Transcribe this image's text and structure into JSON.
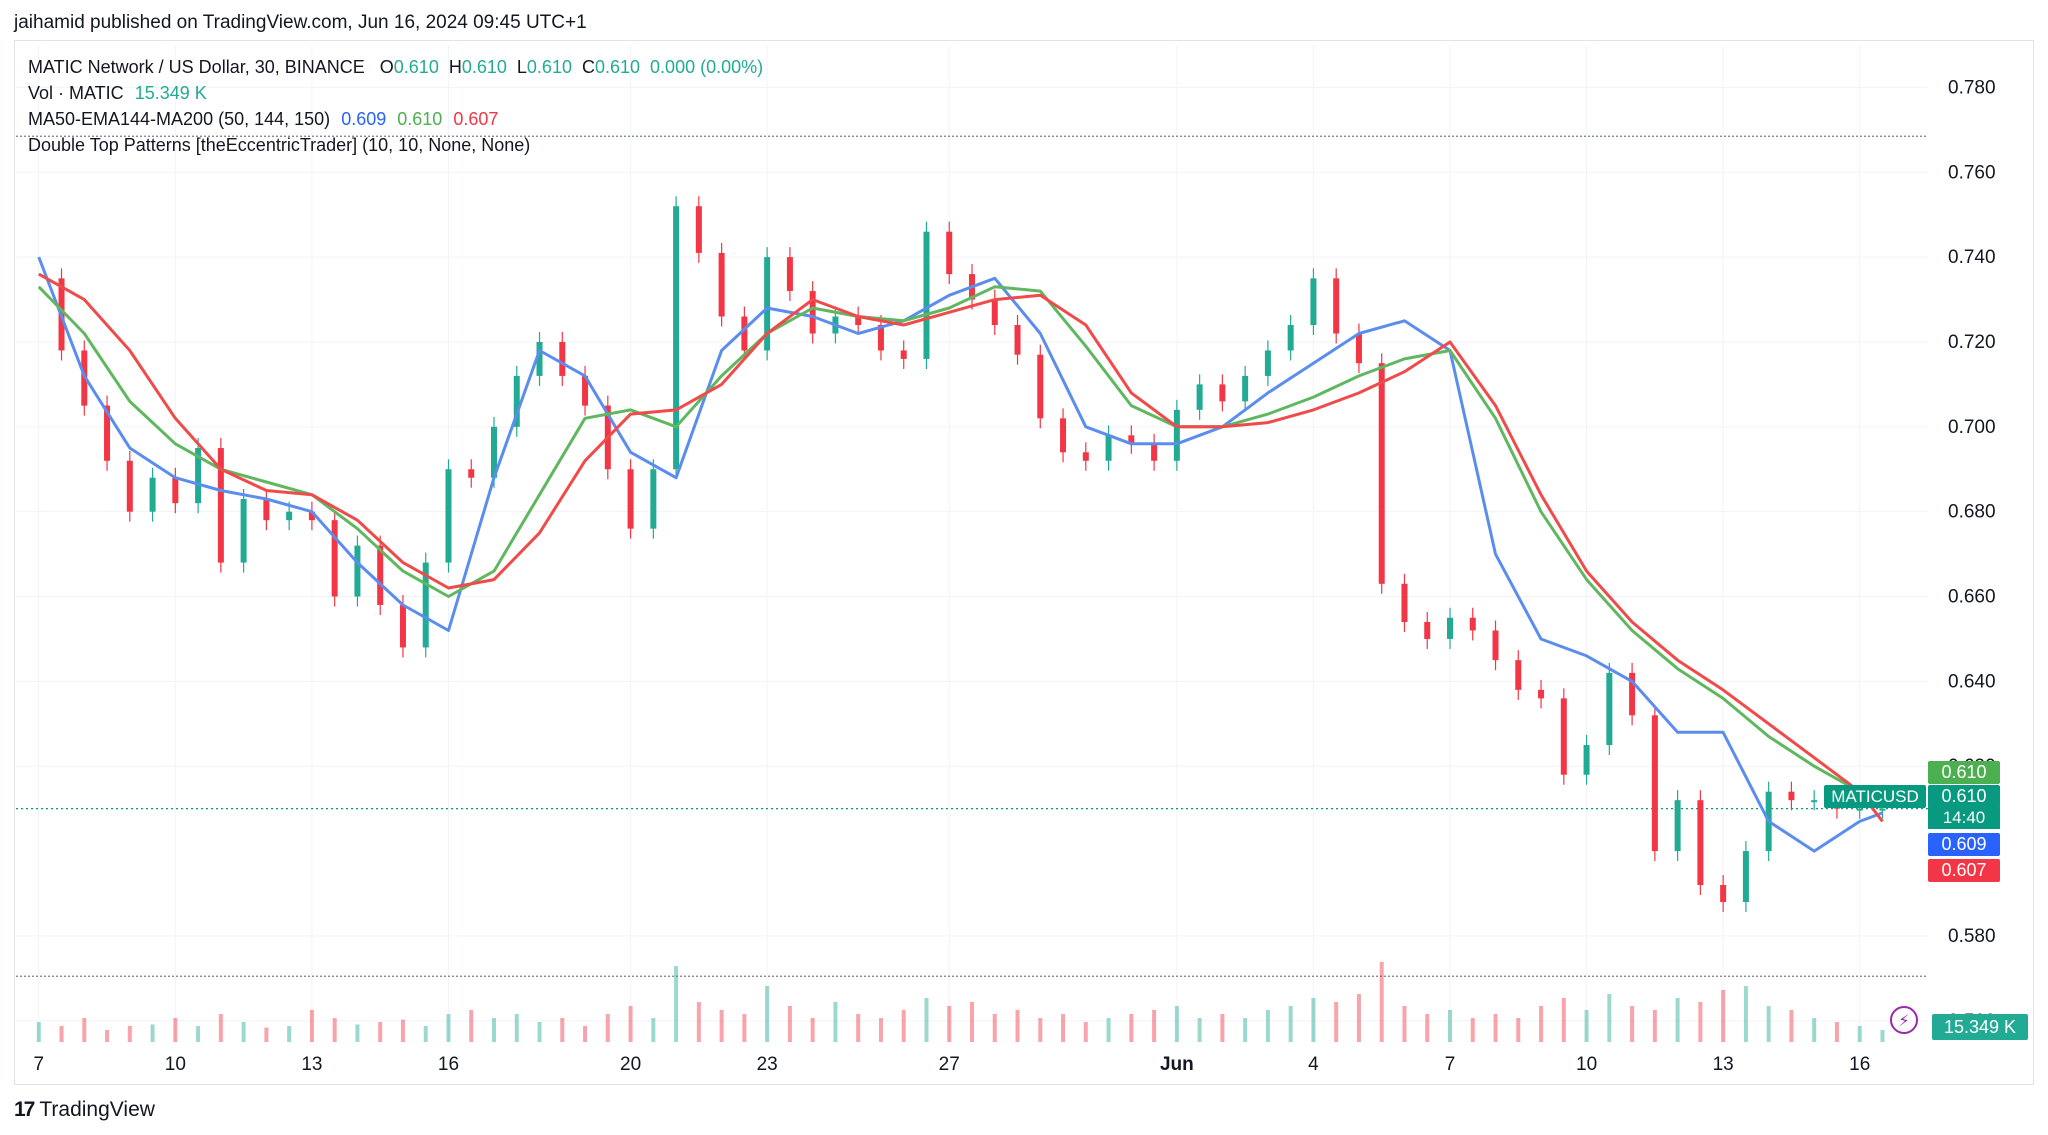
{
  "publisher": "jaihamid published on TradingView.com, Jun 16, 2024 09:45 UTC+1",
  "legend": {
    "symbol": "MATIC Network / US Dollar, 30, BINANCE",
    "o_label": "O",
    "o": "0.610",
    "h_label": "H",
    "h": "0.610",
    "l_label": "L",
    "l": "0.610",
    "c_label": "C",
    "c": "0.610",
    "change": "0.000 (0.00%)",
    "vol_label": "Vol · MATIC",
    "vol": "15.349 K",
    "ma_label": "MA50-EMA144-MA200 (50, 144, 150)",
    "ma50": "0.609",
    "ema144": "0.610",
    "ma200": "0.607",
    "pattern_label": "Double Top Patterns [theEccentricTrader] (10, 10, None, None)"
  },
  "price_tags": {
    "ema144": "0.610",
    "symbol": "MATICUSD",
    "last": "0.610",
    "countdown": "14:40",
    "ma50": "0.609",
    "ma200": "0.607",
    "volume": "15.349 K"
  },
  "footer": {
    "logo_mark": "17",
    "logo_text": "TradingView"
  },
  "colors": {
    "up": "#22ab94",
    "down": "#f23645",
    "ma50": "#5b8def",
    "ema144": "#5fb760",
    "ma200": "#f04a4a"
  },
  "chart_data": {
    "type": "line",
    "title": "MATIC Network / US Dollar, 30, BINANCE",
    "y_ticks": [
      "0.780",
      "0.760",
      "0.740",
      "0.720",
      "0.700",
      "0.680",
      "0.660",
      "0.640",
      "0.620",
      "0.580",
      "0.560"
    ],
    "ylim": [
      0.555,
      0.79
    ],
    "x_ticks": [
      {
        "label": "7",
        "x": 0
      },
      {
        "label": "10",
        "x": 3
      },
      {
        "label": "13",
        "x": 6
      },
      {
        "label": "16",
        "x": 9
      },
      {
        "label": "20",
        "x": 13
      },
      {
        "label": "23",
        "x": 16
      },
      {
        "label": "27",
        "x": 20
      },
      {
        "label": "Jun",
        "x": 25
      },
      {
        "label": "4",
        "x": 28
      },
      {
        "label": "7",
        "x": 31
      },
      {
        "label": "10",
        "x": 34
      },
      {
        "label": "13",
        "x": 37
      },
      {
        "label": "16",
        "x": 40
      }
    ],
    "xlim": [
      -0.5,
      41.5
    ],
    "horizontal_levels": [
      0.7685,
      0.61,
      0.5705
    ],
    "series": [
      {
        "name": "Price",
        "x": [
          0,
          0.5,
          1,
          1.5,
          2,
          2.5,
          3,
          3.5,
          4,
          4.5,
          5,
          5.5,
          6,
          6.5,
          7,
          7.5,
          8,
          8.5,
          9,
          9.5,
          10,
          10.5,
          11,
          11.5,
          12,
          12.5,
          13,
          13.5,
          14,
          14.5,
          15,
          15.5,
          16,
          16.5,
          17,
          17.5,
          18,
          18.5,
          19,
          19.5,
          20,
          20.5,
          21,
          21.5,
          22,
          22.5,
          23,
          23.5,
          24,
          24.5,
          25,
          25.5,
          26,
          26.5,
          27,
          27.5,
          28,
          28.5,
          29,
          29.5,
          30,
          30.5,
          31,
          31.5,
          32,
          32.5,
          33,
          33.5,
          34,
          34.5,
          35,
          35.5,
          36,
          36.5,
          37,
          37.5,
          38,
          38.5,
          39,
          39.5,
          40,
          40.5
        ],
        "values": [
          0.735,
          0.718,
          0.705,
          0.692,
          0.68,
          0.688,
          0.682,
          0.695,
          0.668,
          0.683,
          0.678,
          0.68,
          0.678,
          0.66,
          0.672,
          0.658,
          0.648,
          0.668,
          0.69,
          0.688,
          0.7,
          0.712,
          0.72,
          0.712,
          0.705,
          0.69,
          0.676,
          0.69,
          0.752,
          0.741,
          0.726,
          0.718,
          0.74,
          0.732,
          0.722,
          0.726,
          0.724,
          0.718,
          0.716,
          0.746,
          0.736,
          0.73,
          0.724,
          0.717,
          0.702,
          0.694,
          0.692,
          0.698,
          0.696,
          0.692,
          0.704,
          0.71,
          0.706,
          0.712,
          0.718,
          0.724,
          0.735,
          0.722,
          0.715,
          0.663,
          0.654,
          0.65,
          0.655,
          0.652,
          0.645,
          0.638,
          0.636,
          0.618,
          0.625,
          0.642,
          0.632,
          0.6,
          0.612,
          0.592,
          0.588,
          0.6,
          0.614,
          0.612,
          0.612,
          0.61,
          0.61,
          0.61
        ]
      },
      {
        "name": "MA50",
        "x": [
          0,
          1,
          2,
          3,
          4,
          5,
          6,
          7,
          8,
          9,
          10,
          11,
          12,
          13,
          14,
          15,
          16,
          17,
          18,
          19,
          20,
          21,
          22,
          23,
          24,
          25,
          26,
          27,
          28,
          29,
          30,
          31,
          32,
          33,
          34,
          35,
          36,
          37,
          38,
          39,
          40,
          40.5
        ],
        "values": [
          0.74,
          0.712,
          0.695,
          0.688,
          0.685,
          0.683,
          0.68,
          0.668,
          0.658,
          0.652,
          0.688,
          0.718,
          0.712,
          0.694,
          0.688,
          0.718,
          0.728,
          0.726,
          0.722,
          0.725,
          0.731,
          0.735,
          0.722,
          0.7,
          0.696,
          0.696,
          0.7,
          0.708,
          0.715,
          0.722,
          0.725,
          0.718,
          0.67,
          0.65,
          0.646,
          0.64,
          0.628,
          0.628,
          0.607,
          0.6,
          0.607,
          0.609
        ]
      },
      {
        "name": "EMA144",
        "x": [
          0,
          1,
          2,
          3,
          4,
          5,
          6,
          7,
          8,
          9,
          10,
          11,
          12,
          13,
          14,
          15,
          16,
          17,
          18,
          19,
          20,
          21,
          22,
          23,
          24,
          25,
          26,
          27,
          28,
          29,
          30,
          31,
          32,
          33,
          34,
          35,
          36,
          37,
          38,
          39,
          40,
          40.5
        ],
        "values": [
          0.733,
          0.722,
          0.706,
          0.696,
          0.69,
          0.687,
          0.684,
          0.676,
          0.666,
          0.66,
          0.666,
          0.684,
          0.702,
          0.704,
          0.7,
          0.712,
          0.722,
          0.728,
          0.726,
          0.725,
          0.728,
          0.733,
          0.732,
          0.719,
          0.705,
          0.7,
          0.7,
          0.703,
          0.707,
          0.712,
          0.716,
          0.718,
          0.702,
          0.68,
          0.664,
          0.652,
          0.643,
          0.636,
          0.627,
          0.62,
          0.614,
          0.61
        ]
      },
      {
        "name": "MA200",
        "x": [
          0,
          1,
          2,
          3,
          4,
          5,
          6,
          7,
          8,
          9,
          10,
          11,
          12,
          13,
          14,
          15,
          16,
          17,
          18,
          19,
          20,
          21,
          22,
          23,
          24,
          25,
          26,
          27,
          28,
          29,
          30,
          31,
          32,
          33,
          34,
          35,
          36,
          37,
          38,
          39,
          40,
          40.5
        ],
        "values": [
          0.736,
          0.73,
          0.718,
          0.702,
          0.69,
          0.685,
          0.684,
          0.678,
          0.668,
          0.662,
          0.664,
          0.675,
          0.692,
          0.703,
          0.704,
          0.71,
          0.722,
          0.73,
          0.726,
          0.724,
          0.727,
          0.73,
          0.731,
          0.724,
          0.708,
          0.7,
          0.7,
          0.701,
          0.704,
          0.708,
          0.713,
          0.72,
          0.705,
          0.684,
          0.666,
          0.654,
          0.645,
          0.638,
          0.63,
          0.622,
          0.614,
          0.607
        ]
      }
    ],
    "volume": {
      "name": "Vol · MATIC",
      "x": [
        0,
        0.5,
        1,
        1.5,
        2,
        2.5,
        3,
        3.5,
        4,
        4.5,
        5,
        5.5,
        6,
        6.5,
        7,
        7.5,
        8,
        8.5,
        9,
        9.5,
        10,
        10.5,
        11,
        11.5,
        12,
        12.5,
        13,
        13.5,
        14,
        14.5,
        15,
        15.5,
        16,
        16.5,
        17,
        17.5,
        18,
        18.5,
        19,
        19.5,
        20,
        20.5,
        21,
        21.5,
        22,
        22.5,
        23,
        23.5,
        24,
        24.5,
        25,
        25.5,
        26,
        26.5,
        27,
        27.5,
        28,
        28.5,
        29,
        29.5,
        30,
        30.5,
        31,
        31.5,
        32,
        32.5,
        33,
        33.5,
        34,
        34.5,
        35,
        35.5,
        36,
        36.5,
        37,
        37.5,
        38,
        38.5,
        39,
        39.5,
        40,
        40.5
      ],
      "values": [
        0.25,
        0.2,
        0.3,
        0.15,
        0.2,
        0.22,
        0.3,
        0.2,
        0.35,
        0.25,
        0.18,
        0.2,
        0.4,
        0.3,
        0.22,
        0.25,
        0.28,
        0.2,
        0.35,
        0.4,
        0.3,
        0.35,
        0.25,
        0.3,
        0.2,
        0.35,
        0.45,
        0.3,
        0.95,
        0.5,
        0.4,
        0.35,
        0.7,
        0.45,
        0.3,
        0.5,
        0.35,
        0.3,
        0.4,
        0.55,
        0.45,
        0.5,
        0.35,
        0.4,
        0.3,
        0.35,
        0.25,
        0.3,
        0.35,
        0.4,
        0.45,
        0.3,
        0.35,
        0.3,
        0.4,
        0.45,
        0.55,
        0.5,
        0.6,
        1.0,
        0.45,
        0.35,
        0.4,
        0.3,
        0.35,
        0.3,
        0.45,
        0.55,
        0.4,
        0.6,
        0.45,
        0.4,
        0.55,
        0.5,
        0.65,
        0.7,
        0.45,
        0.4,
        0.3,
        0.25,
        0.2,
        0.15
      ]
    }
  }
}
